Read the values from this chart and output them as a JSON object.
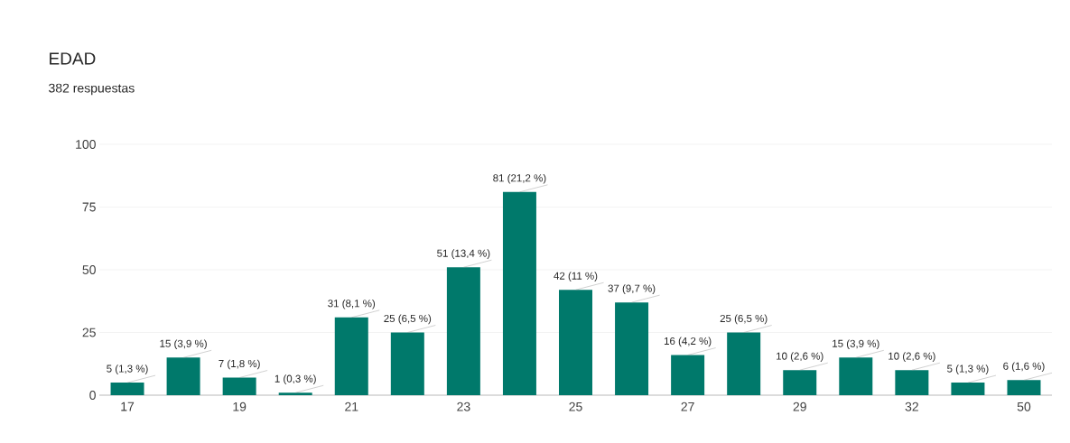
{
  "chart_data": {
    "type": "bar",
    "title": "EDAD",
    "subtitle": "382 respuestas",
    "categories": [
      "17",
      null,
      "19",
      null,
      "21",
      null,
      "23",
      null,
      "25",
      null,
      "27",
      null,
      "29",
      null,
      "32",
      null,
      "50"
    ],
    "values": [
      5,
      15,
      7,
      1,
      31,
      25,
      51,
      81,
      42,
      37,
      16,
      25,
      10,
      15,
      10,
      5,
      6
    ],
    "value_labels": [
      "5 (1,3 %)",
      "15 (3,9 %)",
      "7 (1,8 %)",
      "1 (0,3 %)",
      "31 (8,1 %)",
      "25 (6,5 %)",
      "51 (13,4 %)",
      "81 (21,2 %)",
      "42 (11 %)",
      "37 (9,7 %)",
      "16 (4,2 %)",
      "25 (6,5 %)",
      "10 (2,6 %)",
      "15 (3,9 %)",
      "10 (2,6 %)",
      "5 (1,3 %)",
      "6 (1,6 %)"
    ],
    "color": "#00796b",
    "ylim": [
      0,
      100
    ],
    "yticks": [
      0,
      25,
      50,
      75,
      100
    ],
    "grid": "y"
  }
}
